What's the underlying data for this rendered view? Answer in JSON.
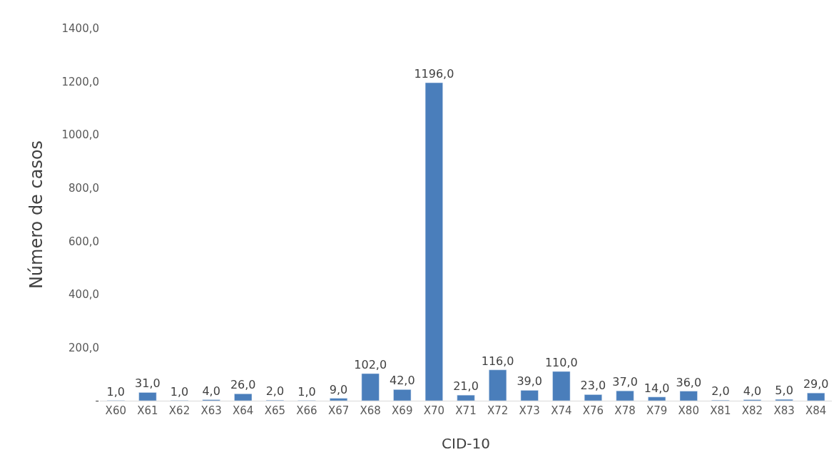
{
  "chart_data": {
    "type": "bar",
    "xlabel": "CID-10",
    "ylabel": "Número de casos",
    "categories": [
      "X60",
      "X61",
      "X62",
      "X63",
      "X64",
      "X65",
      "X66",
      "X67",
      "X68",
      "X69",
      "X70",
      "X71",
      "X72",
      "X73",
      "X74",
      "X76",
      "X78",
      "X79",
      "X80",
      "X81",
      "X82",
      "X83",
      "X84"
    ],
    "values": [
      1,
      31,
      1,
      4,
      26,
      2,
      1,
      9,
      102,
      42,
      1196,
      21,
      116,
      39,
      110,
      23,
      37,
      14,
      36,
      2,
      4,
      5,
      29
    ],
    "value_labels": [
      "1,0",
      "31,0",
      "1,0",
      "4,0",
      "26,0",
      "2,0",
      "1,0",
      "9,0",
      "102,0",
      "42,0",
      "1196,0",
      "21,0",
      "116,0",
      "39,0",
      "110,0",
      "23,0",
      "37,0",
      "14,0",
      "36,0",
      "2,0",
      "4,0",
      "5,0",
      "29,0"
    ],
    "color": "#4a7ebb",
    "ylim": [
      0,
      1400
    ],
    "yticks": [
      {
        "value": 0,
        "label": "-"
      },
      {
        "value": 200,
        "label": "200,0"
      },
      {
        "value": 400,
        "label": "400,0"
      },
      {
        "value": 600,
        "label": "600,0"
      },
      {
        "value": 800,
        "label": "800,0"
      },
      {
        "value": 1000,
        "label": "1000,0"
      },
      {
        "value": 1200,
        "label": "1200,0"
      },
      {
        "value": 1400,
        "label": "1400,0"
      }
    ],
    "grid": false,
    "legend": false
  }
}
